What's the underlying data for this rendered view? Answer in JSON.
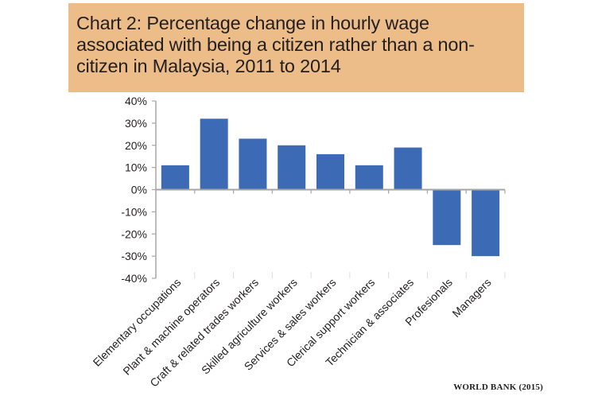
{
  "chart_data": {
    "type": "bar",
    "title": "Chart 2: Percentage change in hourly wage associated with being a citizen rather than a non-citizen in Malaysia, 2011 to 2014",
    "categories": [
      "Elementary occupations",
      "Plant & machine operators",
      "Craft & related trades workers",
      "Skilled agriculture workers",
      "Services & sales workers",
      "Clerical support workers",
      "Technician & associates",
      "Profesionals",
      "Managers"
    ],
    "values": [
      0.11,
      0.32,
      0.23,
      0.2,
      0.16,
      0.11,
      0.19,
      -0.25,
      -0.3
    ],
    "ylim": [
      -0.4,
      0.4
    ],
    "yticks": [
      0.4,
      0.3,
      0.2,
      0.1,
      0,
      -0.1,
      -0.2,
      -0.3,
      -0.4
    ],
    "ytick_labels": [
      "40%",
      "30%",
      "20%",
      "10%",
      "0%",
      "-10%",
      "-20%",
      "-30%",
      "-40%"
    ],
    "xlabel": "",
    "ylabel": "",
    "grid": false,
    "bar_color": "#3d6ab4",
    "source": "WORLD BANK (2015)"
  }
}
